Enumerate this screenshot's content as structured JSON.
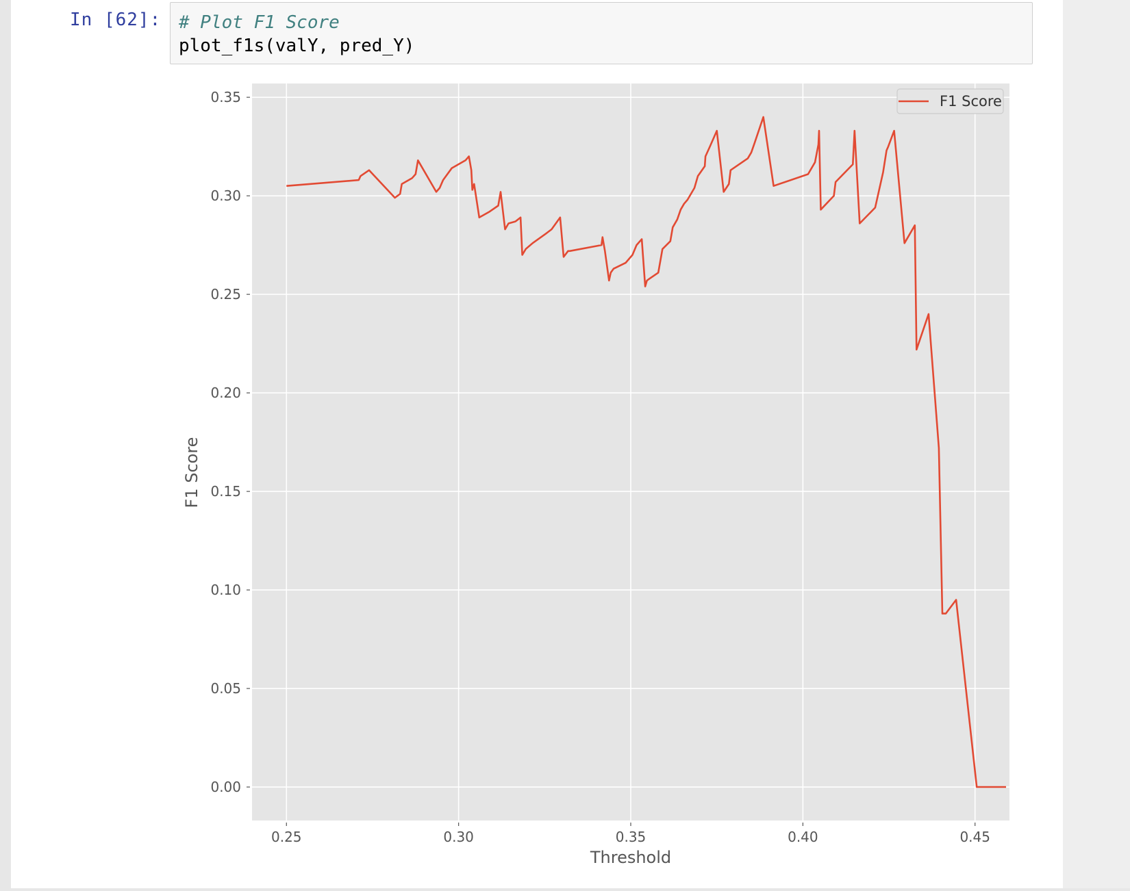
{
  "cell": {
    "prompt": "In [62]:",
    "code_comment": "# Plot F1 Score",
    "code_line": "plot_f1s(valY, pred_Y)"
  },
  "colors": {
    "line": "#e24a33",
    "plot_bg": "#e5e5e5",
    "grid": "#ffffff",
    "text": "#555555"
  },
  "chart_data": {
    "type": "line",
    "title": "",
    "xlabel": "Threshold",
    "ylabel": "F1 Score",
    "xlim": [
      0.24,
      0.46
    ],
    "ylim": [
      -0.017,
      0.357
    ],
    "xticks": [
      "0.25",
      "0.30",
      "0.35",
      "0.40",
      "0.45"
    ],
    "yticks": [
      "0.00",
      "0.05",
      "0.10",
      "0.15",
      "0.20",
      "0.25",
      "0.30",
      "0.35"
    ],
    "grid": true,
    "legend_position": "upper right",
    "series": [
      {
        "name": "F1 Score",
        "x": [
          0.25,
          0.271,
          0.2715,
          0.274,
          0.2815,
          0.283,
          0.2835,
          0.2865,
          0.2875,
          0.2882,
          0.2935,
          0.2945,
          0.2955,
          0.298,
          0.302,
          0.303,
          0.3037,
          0.304,
          0.3045,
          0.306,
          0.309,
          0.3115,
          0.3122,
          0.3135,
          0.3145,
          0.3165,
          0.318,
          0.3185,
          0.3195,
          0.3215,
          0.3255,
          0.327,
          0.3295,
          0.3305,
          0.3318,
          0.3318,
          0.3323,
          0.3415,
          0.3418,
          0.3425,
          0.3437,
          0.3442,
          0.345,
          0.3485,
          0.3505,
          0.3517,
          0.3532,
          0.3542,
          0.3547,
          0.3555,
          0.358,
          0.3592,
          0.3615,
          0.3622,
          0.3635,
          0.3645,
          0.3655,
          0.3665,
          0.3685,
          0.3695,
          0.3715,
          0.3717,
          0.373,
          0.375,
          0.377,
          0.3785,
          0.379,
          0.384,
          0.385,
          0.386,
          0.3885,
          0.3915,
          0.4015,
          0.4035,
          0.4045,
          0.4047,
          0.4052,
          0.409,
          0.4095,
          0.4145,
          0.415,
          0.4165,
          0.421,
          0.4233,
          0.4243,
          0.4248,
          0.4265,
          0.4295,
          0.4325,
          0.433,
          0.4365,
          0.4395,
          0.4405,
          0.4407,
          0.4415,
          0.4445,
          0.4505,
          0.459
        ],
        "y": [
          0.305,
          0.308,
          0.31,
          0.313,
          0.299,
          0.301,
          0.306,
          0.309,
          0.311,
          0.318,
          0.302,
          0.304,
          0.308,
          0.314,
          0.318,
          0.32,
          0.313,
          0.303,
          0.306,
          0.289,
          0.292,
          0.295,
          0.302,
          0.283,
          0.286,
          0.287,
          0.289,
          0.27,
          0.273,
          0.276,
          0.281,
          0.283,
          0.289,
          0.269,
          0.272,
          0.272,
          0.272,
          0.275,
          0.279,
          0.272,
          0.257,
          0.261,
          0.263,
          0.266,
          0.27,
          0.275,
          0.278,
          0.254,
          0.257,
          0.258,
          0.261,
          0.273,
          0.277,
          0.284,
          0.288,
          0.293,
          0.296,
          0.298,
          0.304,
          0.31,
          0.315,
          0.32,
          0.325,
          0.333,
          0.302,
          0.306,
          0.313,
          0.319,
          0.322,
          0.327,
          0.34,
          0.305,
          0.311,
          0.317,
          0.326,
          0.333,
          0.293,
          0.3,
          0.307,
          0.316,
          0.333,
          0.286,
          0.294,
          0.312,
          0.323,
          0.325,
          0.333,
          0.276,
          0.285,
          0.222,
          0.24,
          0.172,
          0.088,
          0.088,
          0.088,
          0.095,
          0.0,
          0.0
        ]
      }
    ]
  }
}
